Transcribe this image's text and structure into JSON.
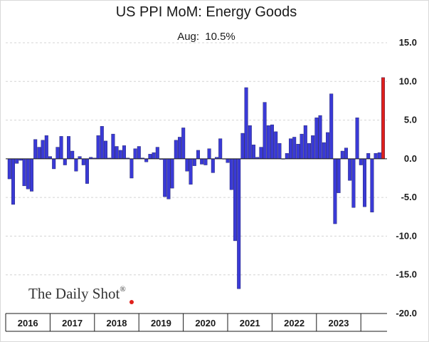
{
  "chart_data": {
    "type": "bar",
    "title": "US PPI MoM: Energy Goods",
    "latest_label": "Aug:",
    "latest_value": "10.5%",
    "ylim": [
      -20,
      15
    ],
    "yticks": [
      "15.0",
      "10.0",
      "5.0",
      "0.0",
      "-5.0",
      "-10.0",
      "-15.0",
      "-20.0"
    ],
    "ytick_values": [
      15,
      10,
      5,
      0,
      -5,
      -10,
      -15,
      -20
    ],
    "years": [
      "2016",
      "2017",
      "2018",
      "2019",
      "2020",
      "2021",
      "2022",
      "2023"
    ],
    "series": [
      {
        "name": "Energy Goods MoM",
        "color": "#3a3ad6",
        "highlight_color": "#e0201b",
        "values": [
          -2.6,
          -5.9,
          -0.6,
          -0.2,
          -3.5,
          -3.9,
          -4.2,
          2.5,
          1.5,
          2.4,
          3.0,
          0.3,
          -1.3,
          1.5,
          2.9,
          -0.8,
          2.9,
          1.0,
          -1.6,
          0.3,
          -0.8,
          -3.2,
          0.2,
          0.1,
          3.0,
          4.2,
          2.3,
          0.1,
          3.2,
          1.6,
          1.1,
          1.7,
          0.1,
          -2.5,
          1.3,
          1.6,
          0.1,
          -0.4,
          0.6,
          0.8,
          1.5,
          -0.1,
          -4.9,
          -5.2,
          -3.8,
          2.4,
          2.8,
          4.0,
          -1.6,
          -3.3,
          -0.9,
          1.1,
          -0.7,
          -0.8,
          1.3,
          -1.8,
          0.2,
          2.6,
          0.0,
          -0.5,
          -4.0,
          -10.6,
          -16.8,
          3.3,
          9.2,
          4.3,
          1.8,
          0.2,
          1.5,
          7.3,
          4.3,
          4.4,
          3.5,
          2.0,
          0.0,
          0.7,
          2.6,
          2.8,
          1.9,
          3.2,
          4.3,
          2.0,
          3.0,
          5.3,
          5.6,
          2.1,
          3.4,
          8.4,
          -8.4,
          -4.4,
          1.0,
          1.4,
          -2.8,
          -6.3,
          5.3,
          -0.8,
          -6.2,
          0.7,
          -6.9,
          0.7,
          0.8,
          10.5
        ]
      }
    ]
  },
  "watermark": {
    "text": "The Daily Shot",
    "reg_mark": "®"
  }
}
